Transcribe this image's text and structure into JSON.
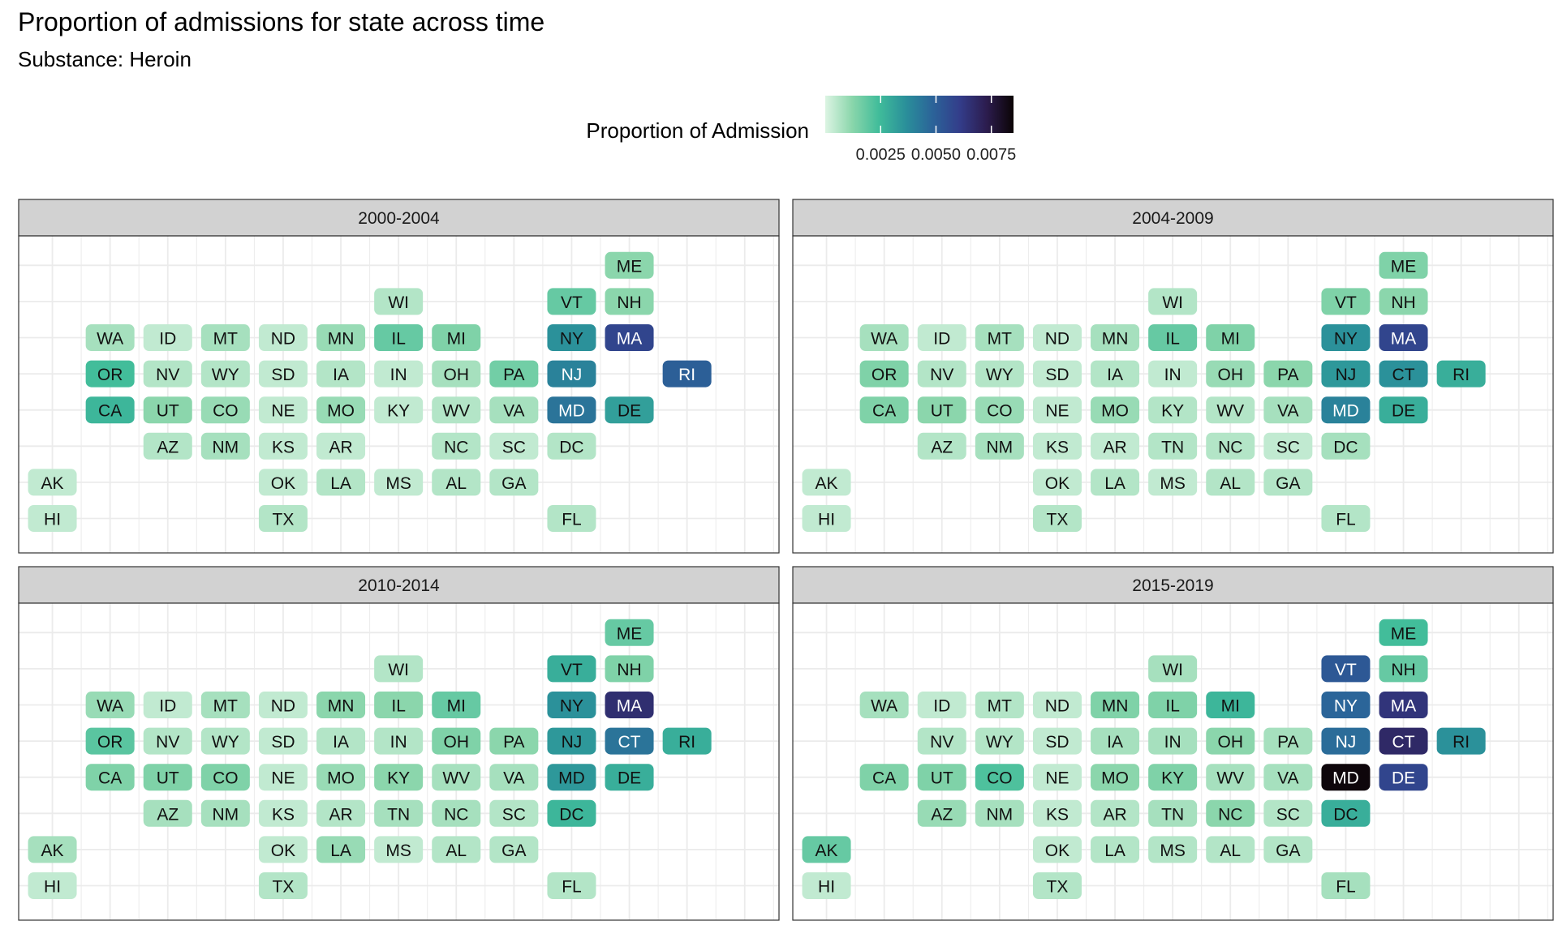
{
  "title": "Proportion of admissions for state across time",
  "subtitle": "Substance: Heroin",
  "legend": {
    "title": "Proportion of Admission",
    "ticks": [
      0.0025,
      0.005,
      0.0075
    ],
    "tick_labels": [
      "0.0025",
      "0.0050",
      "0.0075"
    ],
    "range": [
      0,
      0.0085
    ],
    "colors": [
      "#dcf4e3",
      "#8ad6ab",
      "#40bc9a",
      "#2a8f9a",
      "#2b6399",
      "#333d8a",
      "#2c1c4e",
      "#0b0405"
    ]
  },
  "chart_data": {
    "type": "heatmap",
    "title": "Proportion of admissions for state across time",
    "subtitle": "Substance: Heroin",
    "grid": true,
    "legend_position": "top",
    "value_range": [
      0,
      0.0085
    ],
    "grid_layout": {
      "ME": [
        11,
        0
      ],
      "WI": [
        7,
        1
      ],
      "VT": [
        10,
        1
      ],
      "NH": [
        11,
        1
      ],
      "WA": [
        2,
        2
      ],
      "ID": [
        3,
        2
      ],
      "MT": [
        4,
        2
      ],
      "ND": [
        5,
        2
      ],
      "MN": [
        6,
        2
      ],
      "IL": [
        7,
        2
      ],
      "MI": [
        8,
        2
      ],
      "NY": [
        10,
        2
      ],
      "MA": [
        11,
        2
      ],
      "OR": [
        2,
        3
      ],
      "NV": [
        3,
        3
      ],
      "WY": [
        4,
        3
      ],
      "SD": [
        5,
        3
      ],
      "IA": [
        6,
        3
      ],
      "IN": [
        7,
        3
      ],
      "OH": [
        8,
        3
      ],
      "PA": [
        9,
        3
      ],
      "NJ": [
        10,
        3
      ],
      "CT": [
        11,
        3
      ],
      "RI": [
        12,
        3
      ],
      "CA": [
        2,
        4
      ],
      "UT": [
        3,
        4
      ],
      "CO": [
        4,
        4
      ],
      "NE": [
        5,
        4
      ],
      "MO": [
        6,
        4
      ],
      "KY": [
        7,
        4
      ],
      "WV": [
        8,
        4
      ],
      "VA": [
        9,
        4
      ],
      "MD": [
        10,
        4
      ],
      "DE": [
        11,
        4
      ],
      "AZ": [
        3,
        5
      ],
      "NM": [
        4,
        5
      ],
      "KS": [
        5,
        5
      ],
      "AR": [
        6,
        5
      ],
      "TN": [
        7,
        5
      ],
      "NC": [
        8,
        5
      ],
      "SC": [
        9,
        5
      ],
      "DC": [
        10,
        5
      ],
      "AK": [
        1,
        6
      ],
      "OK": [
        5,
        6
      ],
      "LA": [
        6,
        6
      ],
      "MS": [
        7,
        6
      ],
      "AL": [
        8,
        6
      ],
      "GA": [
        9,
        6
      ],
      "HI": [
        1,
        7
      ],
      "TX": [
        5,
        7
      ],
      "FL": [
        10,
        7
      ]
    },
    "panels": [
      {
        "label": "2000-2004",
        "values": {
          "ME": 0.0012,
          "WI": 0.0006,
          "VT": 0.0018,
          "NH": 0.0012,
          "WA": 0.0008,
          "ID": 0.0004,
          "MT": 0.0008,
          "ND": 0.0004,
          "MN": 0.001,
          "IL": 0.0018,
          "MI": 0.0014,
          "NY": 0.0036,
          "MA": 0.0058,
          "OR": 0.0024,
          "NV": 0.0006,
          "WY": 0.0006,
          "SD": 0.0004,
          "IA": 0.0006,
          "IN": 0.0004,
          "OH": 0.0008,
          "PA": 0.0016,
          "NJ": 0.004,
          "RI": 0.005,
          "CA": 0.0026,
          "UT": 0.0012,
          "CO": 0.001,
          "NE": 0.0004,
          "MO": 0.001,
          "KY": 0.0004,
          "WV": 0.0006,
          "VA": 0.0008,
          "MD": 0.0044,
          "DE": 0.0032,
          "AZ": 0.0006,
          "NM": 0.0008,
          "KS": 0.0004,
          "AR": 0.0004,
          "NC": 0.0006,
          "SC": 0.0004,
          "DC": 0.0006,
          "AK": 0.0004,
          "OK": 0.0004,
          "LA": 0.0006,
          "MS": 0.0004,
          "AL": 0.0006,
          "GA": 0.0006,
          "HI": 0.0004,
          "TX": 0.0006,
          "FL": 0.0006
        }
      },
      {
        "label": "2004-2009",
        "values": {
          "ME": 0.0014,
          "WI": 0.0006,
          "VT": 0.0014,
          "NH": 0.0012,
          "WA": 0.0008,
          "ID": 0.0004,
          "MT": 0.0008,
          "ND": 0.0004,
          "MN": 0.0008,
          "IL": 0.0018,
          "MI": 0.0014,
          "NY": 0.0036,
          "MA": 0.0058,
          "OR": 0.0014,
          "NV": 0.0006,
          "WY": 0.0006,
          "SD": 0.0004,
          "IA": 0.0006,
          "IN": 0.0004,
          "OH": 0.001,
          "PA": 0.0012,
          "NJ": 0.0034,
          "CT": 0.0036,
          "RI": 0.0028,
          "CA": 0.0014,
          "UT": 0.0012,
          "CO": 0.001,
          "NE": 0.0004,
          "MO": 0.001,
          "KY": 0.0006,
          "WV": 0.0006,
          "VA": 0.0008,
          "MD": 0.004,
          "DE": 0.0028,
          "AZ": 0.0006,
          "NM": 0.0008,
          "KS": 0.0004,
          "AR": 0.0004,
          "TN": 0.0006,
          "NC": 0.0006,
          "SC": 0.0004,
          "DC": 0.0008,
          "AK": 0.0004,
          "OK": 0.0004,
          "LA": 0.0006,
          "MS": 0.0004,
          "AL": 0.0006,
          "GA": 0.0006,
          "HI": 0.0004,
          "TX": 0.0006,
          "FL": 0.0006
        }
      },
      {
        "label": "2010-2014",
        "values": {
          "ME": 0.0018,
          "WI": 0.0006,
          "VT": 0.0028,
          "NH": 0.0014,
          "WA": 0.001,
          "ID": 0.0004,
          "MT": 0.0008,
          "ND": 0.0004,
          "MN": 0.0012,
          "IL": 0.0012,
          "MI": 0.0018,
          "NY": 0.0036,
          "MA": 0.0066,
          "OR": 0.002,
          "NV": 0.0006,
          "WY": 0.0006,
          "SD": 0.0004,
          "IA": 0.0006,
          "IN": 0.0006,
          "OH": 0.0014,
          "PA": 0.0012,
          "NJ": 0.0034,
          "CT": 0.0044,
          "RI": 0.0028,
          "CA": 0.0014,
          "UT": 0.0014,
          "CO": 0.0014,
          "NE": 0.0004,
          "MO": 0.001,
          "KY": 0.0012,
          "WV": 0.0008,
          "VA": 0.0008,
          "MD": 0.0034,
          "DE": 0.0028,
          "AZ": 0.0008,
          "NM": 0.0008,
          "KS": 0.0004,
          "AR": 0.0006,
          "TN": 0.0008,
          "NC": 0.0008,
          "SC": 0.0006,
          "DC": 0.0026,
          "AK": 0.0008,
          "OK": 0.0004,
          "LA": 0.001,
          "MS": 0.0004,
          "AL": 0.0006,
          "GA": 0.0006,
          "HI": 0.0004,
          "TX": 0.0006,
          "FL": 0.0006
        }
      },
      {
        "label": "2015-2019",
        "values": {
          "ME": 0.0024,
          "WI": 0.0008,
          "VT": 0.0052,
          "NH": 0.0018,
          "WA": 0.0008,
          "ID": 0.0004,
          "MT": 0.0006,
          "ND": 0.0004,
          "MN": 0.0014,
          "IL": 0.0014,
          "MI": 0.0026,
          "NY": 0.0048,
          "MA": 0.0064,
          "NV": 0.0006,
          "WY": 0.0006,
          "SD": 0.0004,
          "IA": 0.0008,
          "IN": 0.0008,
          "OH": 0.0012,
          "PA": 0.0008,
          "NJ": 0.0046,
          "CT": 0.0068,
          "RI": 0.0036,
          "CA": 0.0014,
          "UT": 0.0014,
          "CO": 0.0022,
          "NE": 0.0004,
          "MO": 0.0012,
          "KY": 0.0014,
          "WV": 0.0008,
          "VA": 0.0008,
          "MD": 0.0084,
          "DE": 0.0058,
          "AZ": 0.001,
          "NM": 0.0008,
          "KS": 0.0004,
          "AR": 0.0006,
          "TN": 0.0008,
          "NC": 0.0012,
          "SC": 0.0006,
          "DC": 0.0028,
          "AK": 0.0018,
          "OK": 0.0004,
          "LA": 0.0006,
          "MS": 0.0006,
          "AL": 0.0006,
          "GA": 0.0006,
          "HI": 0.0004,
          "TX": 0.0006,
          "FL": 0.0008
        }
      }
    ]
  }
}
